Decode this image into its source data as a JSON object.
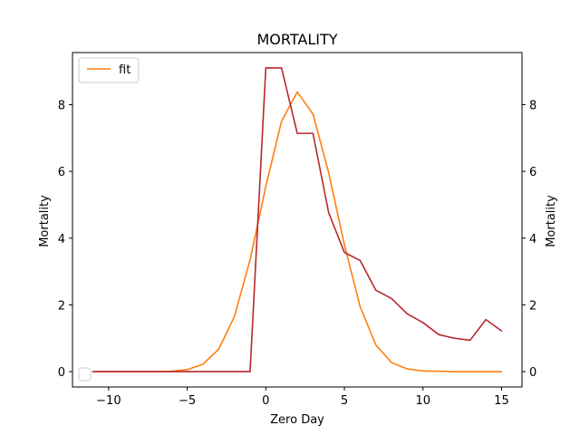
{
  "chart_data": {
    "type": "line",
    "title": "MORTALITY",
    "xlabel": "Zero Day",
    "ylabel": "Mortality",
    "ylabel_right": "Mortality",
    "xlim": [
      -12.3,
      16.3
    ],
    "ylim": [
      -0.46,
      9.56
    ],
    "xticks": [
      -10,
      -5,
      0,
      5,
      10,
      15
    ],
    "yticks": [
      0,
      2,
      4,
      6,
      8
    ],
    "grid": false,
    "legend": {
      "placement": "top-left",
      "entries": [
        "fit"
      ]
    },
    "legend2": {
      "placement": "bottom-left",
      "entries": [
        ""
      ]
    },
    "series": [
      {
        "name": "fit",
        "color": "#ff7f0e",
        "x": [
          -11,
          -10,
          -9,
          -8,
          -7,
          -6,
          -5,
          -4,
          -3,
          -2,
          -1,
          0,
          1,
          2,
          3,
          4,
          5,
          6,
          7,
          8,
          9,
          10,
          11,
          12,
          13,
          14,
          15
        ],
        "y": [
          0,
          0,
          0,
          0,
          0,
          0.01,
          0.06,
          0.22,
          0.67,
          1.65,
          3.35,
          5.55,
          7.5,
          8.38,
          7.72,
          5.96,
          3.8,
          1.95,
          0.8,
          0.27,
          0.08,
          0.02,
          0.01,
          0,
          0,
          0,
          0
        ]
      },
      {
        "color": "#b5282e",
        "x": [
          -11,
          -10,
          -9,
          -8,
          -7,
          -6,
          -5,
          -4,
          -3,
          -2,
          -1,
          0,
          1,
          2,
          3,
          4,
          5,
          6,
          7,
          8,
          9,
          10,
          11,
          12,
          13,
          14,
          15
        ],
        "y": [
          0,
          0,
          0,
          0,
          0,
          0,
          0,
          0,
          0,
          0,
          0,
          9.1,
          9.1,
          7.14,
          7.14,
          4.76,
          3.57,
          3.33,
          2.44,
          2.19,
          1.73,
          1.47,
          1.11,
          1.0,
          0.94,
          1.56,
          1.22
        ]
      }
    ]
  }
}
